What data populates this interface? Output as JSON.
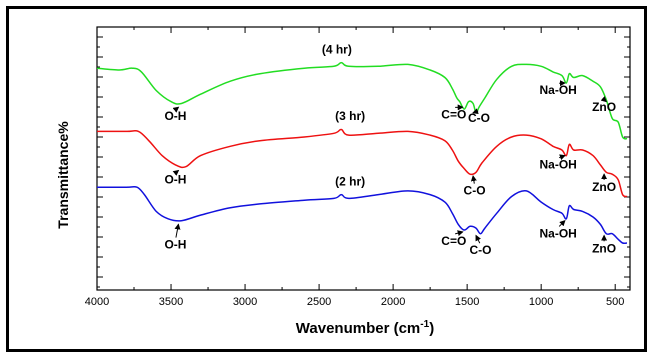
{
  "chart_data": {
    "type": "line",
    "xlabel": "Wavenumber (cm",
    "xlabel_sup": "-1",
    "xlabel_close": ")",
    "ylabel": "Transmittance%",
    "xlim": [
      4000,
      400
    ],
    "x_ticks": [
      4000,
      3500,
      3000,
      2500,
      2000,
      1500,
      1000,
      500
    ],
    "y_ticks_shown": false,
    "grid": false,
    "legend": "none",
    "series": [
      {
        "name": "(4 hr)",
        "color": "#22dd22",
        "points": [
          [
            4000,
            0.06
          ],
          [
            3850,
            0.07
          ],
          [
            3760,
            0.06
          ],
          [
            3700,
            0.08
          ],
          [
            3600,
            0.18
          ],
          [
            3500,
            0.24
          ],
          [
            3430,
            0.25
          ],
          [
            3300,
            0.2
          ],
          [
            3100,
            0.13
          ],
          [
            2900,
            0.09
          ],
          [
            2600,
            0.06
          ],
          [
            2400,
            0.05
          ],
          [
            2350,
            0.03
          ],
          [
            2300,
            0.05
          ],
          [
            2100,
            0.05
          ],
          [
            1900,
            0.04
          ],
          [
            1750,
            0.07
          ],
          [
            1650,
            0.11
          ],
          [
            1600,
            0.17
          ],
          [
            1570,
            0.22
          ],
          [
            1550,
            0.24
          ],
          [
            1520,
            0.28
          ],
          [
            1490,
            0.24
          ],
          [
            1460,
            0.25
          ],
          [
            1440,
            0.3
          ],
          [
            1420,
            0.27
          ],
          [
            1380,
            0.22
          ],
          [
            1300,
            0.12
          ],
          [
            1200,
            0.05
          ],
          [
            1100,
            0.04
          ],
          [
            1000,
            0.05
          ],
          [
            920,
            0.08
          ],
          [
            860,
            0.1
          ],
          [
            830,
            0.14
          ],
          [
            810,
            0.09
          ],
          [
            780,
            0.11
          ],
          [
            720,
            0.1
          ],
          [
            650,
            0.13
          ],
          [
            600,
            0.16
          ],
          [
            560,
            0.23
          ],
          [
            520,
            0.33
          ],
          [
            480,
            0.35
          ],
          [
            450,
            0.43
          ],
          [
            420,
            0.44
          ]
        ]
      },
      {
        "name": "(3 hr)",
        "color": "#ee1111",
        "points": [
          [
            4000,
            0.4
          ],
          [
            3800,
            0.4
          ],
          [
            3720,
            0.4
          ],
          [
            3650,
            0.45
          ],
          [
            3560,
            0.53
          ],
          [
            3470,
            0.58
          ],
          [
            3400,
            0.59
          ],
          [
            3300,
            0.53
          ],
          [
            3100,
            0.48
          ],
          [
            2900,
            0.45
          ],
          [
            2600,
            0.43
          ],
          [
            2400,
            0.41
          ],
          [
            2350,
            0.39
          ],
          [
            2300,
            0.42
          ],
          [
            2100,
            0.41
          ],
          [
            1900,
            0.4
          ],
          [
            1750,
            0.42
          ],
          [
            1650,
            0.45
          ],
          [
            1600,
            0.5
          ],
          [
            1560,
            0.56
          ],
          [
            1520,
            0.6
          ],
          [
            1480,
            0.63
          ],
          [
            1440,
            0.62
          ],
          [
            1400,
            0.57
          ],
          [
            1300,
            0.48
          ],
          [
            1200,
            0.43
          ],
          [
            1100,
            0.42
          ],
          [
            1000,
            0.44
          ],
          [
            920,
            0.48
          ],
          [
            860,
            0.5
          ],
          [
            830,
            0.53
          ],
          [
            810,
            0.47
          ],
          [
            780,
            0.5
          ],
          [
            720,
            0.5
          ],
          [
            650,
            0.53
          ],
          [
            600,
            0.58
          ],
          [
            560,
            0.62
          ],
          [
            520,
            0.63
          ],
          [
            480,
            0.66
          ],
          [
            450,
            0.74
          ],
          [
            420,
            0.75
          ]
        ]
      },
      {
        "name": "(2 hr)",
        "color": "#1111dd",
        "points": [
          [
            4000,
            0.7
          ],
          [
            3800,
            0.7
          ],
          [
            3730,
            0.7
          ],
          [
            3680,
            0.74
          ],
          [
            3600,
            0.83
          ],
          [
            3520,
            0.87
          ],
          [
            3430,
            0.88
          ],
          [
            3300,
            0.85
          ],
          [
            3100,
            0.81
          ],
          [
            2900,
            0.79
          ],
          [
            2600,
            0.77
          ],
          [
            2400,
            0.76
          ],
          [
            2350,
            0.74
          ],
          [
            2300,
            0.76
          ],
          [
            2100,
            0.74
          ],
          [
            1900,
            0.72
          ],
          [
            1750,
            0.74
          ],
          [
            1650,
            0.78
          ],
          [
            1600,
            0.84
          ],
          [
            1560,
            0.9
          ],
          [
            1520,
            0.93
          ],
          [
            1480,
            0.91
          ],
          [
            1440,
            0.92
          ],
          [
            1410,
            0.95
          ],
          [
            1380,
            0.92
          ],
          [
            1300,
            0.84
          ],
          [
            1200,
            0.75
          ],
          [
            1100,
            0.72
          ],
          [
            1000,
            0.78
          ],
          [
            920,
            0.82
          ],
          [
            860,
            0.84
          ],
          [
            830,
            0.87
          ],
          [
            810,
            0.8
          ],
          [
            780,
            0.82
          ],
          [
            720,
            0.83
          ],
          [
            650,
            0.86
          ],
          [
            600,
            0.9
          ],
          [
            560,
            0.95
          ],
          [
            520,
            0.95
          ],
          [
            480,
            0.98
          ],
          [
            450,
            1.0
          ],
          [
            420,
            1.0
          ]
        ]
      }
    ],
    "annotations": [
      {
        "text": "(4 hr)",
        "x": 2380,
        "y": -0.02,
        "kind": "title"
      },
      {
        "text": "(3 hr)",
        "x": 2290,
        "y": 0.34,
        "kind": "title"
      },
      {
        "text": "(2 hr)",
        "x": 2290,
        "y": 0.69,
        "kind": "title"
      },
      {
        "text": "O-H",
        "x": 3470,
        "y": 0.34,
        "ax": 3450,
        "ay": 0.27,
        "kind": "label"
      },
      {
        "text": "C=O",
        "x": 1590,
        "y": 0.33,
        "ax": 1530,
        "ay": 0.27,
        "kind": "label"
      },
      {
        "text": "C-O",
        "x": 1420,
        "y": 0.35,
        "ax": 1460,
        "ay": 0.3,
        "kind": "label"
      },
      {
        "text": "Na-OH",
        "x": 885,
        "y": 0.2,
        "ax": 840,
        "ay": 0.14,
        "kind": "label"
      },
      {
        "text": "ZnO",
        "x": 575,
        "y": 0.29,
        "ax": 560,
        "ay": 0.24,
        "kind": "label"
      },
      {
        "text": "O-H",
        "x": 3470,
        "y": 0.68,
        "ax": 3450,
        "ay": 0.61,
        "kind": "label"
      },
      {
        "text": "C-O",
        "x": 1450,
        "y": 0.74,
        "ax": 1460,
        "ay": 0.64,
        "kind": "label"
      },
      {
        "text": "Na-OH",
        "x": 885,
        "y": 0.6,
        "ax": 840,
        "ay": 0.53,
        "kind": "label"
      },
      {
        "text": "ZnO",
        "x": 575,
        "y": 0.72,
        "ax": 575,
        "ay": 0.63,
        "kind": "label"
      },
      {
        "text": "O-H",
        "x": 3470,
        "y": 1.03,
        "ax": 3450,
        "ay": 0.9,
        "kind": "label"
      },
      {
        "text": "C=O",
        "x": 1590,
        "y": 1.01,
        "ax": 1530,
        "ay": 0.94,
        "kind": "label"
      },
      {
        "text": "C-O",
        "x": 1410,
        "y": 1.06,
        "ax": 1440,
        "ay": 0.96,
        "kind": "label"
      },
      {
        "text": "Na-OH",
        "x": 885,
        "y": 0.97,
        "ax": 840,
        "ay": 0.88,
        "kind": "label"
      },
      {
        "text": "ZnO",
        "x": 575,
        "y": 1.05,
        "ax": 575,
        "ay": 0.96,
        "kind": "label"
      }
    ]
  }
}
